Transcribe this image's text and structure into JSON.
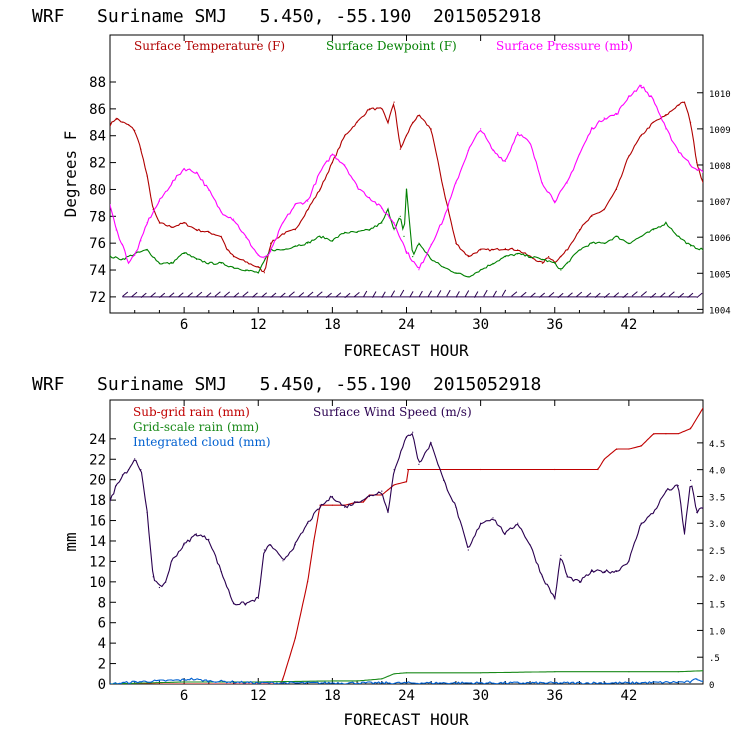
{
  "colors": {
    "temp": "#b00000",
    "dew": "#008000",
    "press": "#ff00ff",
    "rain_sub": "#c00000",
    "rain_grid": "#1a8a1a",
    "cloud": "#0060d0",
    "wind": "#2a0050",
    "axis": "#000000"
  },
  "chart_data": [
    {
      "type": "line",
      "title": "WRF   Suriname SMJ   5.450, -55.190  2015052918",
      "xlabel": "FORECAST HOUR",
      "ylabel": "Degrees F",
      "xlim": [
        0,
        48
      ],
      "ylim": [
        70.8,
        91.5
      ],
      "xticks": [
        "6",
        "12",
        "18",
        "24",
        "30",
        "36",
        "42"
      ],
      "xtick_values": [
        6,
        12,
        18,
        24,
        30,
        36,
        42
      ],
      "yticks": [
        "72",
        "74",
        "76",
        "78",
        "80",
        "82",
        "84",
        "86",
        "88"
      ],
      "ytick_values": [
        72,
        74,
        76,
        78,
        80,
        82,
        84,
        86,
        88
      ],
      "y2lim": [
        1003.9,
        1011.6
      ],
      "y2ticks": [
        "1004",
        "1005",
        "1006",
        "1007",
        "1008",
        "1009",
        "1010"
      ],
      "y2tick_values": [
        1004,
        1005,
        1006,
        1007,
        1008,
        1009,
        1010
      ],
      "legend": [
        "Surface Temperature (F)",
        "Surface Dewpoint (F)",
        "Surface Pressure (mb)"
      ],
      "series": [
        {
          "name": "Surface Temperature (F)",
          "axis": "left",
          "x": [
            0,
            0.5,
            1,
            1.5,
            2,
            2.5,
            3,
            3.5,
            4,
            5,
            6,
            7,
            8,
            9,
            9.5,
            10,
            11,
            12,
            12.5,
            13,
            14,
            15,
            16,
            17,
            18,
            19,
            20,
            21,
            22,
            22.5,
            23,
            23.5,
            24,
            24.5,
            25,
            26,
            27,
            28,
            29,
            30,
            31,
            32,
            33,
            34,
            35,
            35.5,
            36,
            36.5,
            37,
            38,
            39,
            40,
            41,
            42,
            43,
            44,
            45,
            46,
            46.5,
            47,
            47.5,
            48
          ],
          "values": [
            84.8,
            85.3,
            85.0,
            84.8,
            84.4,
            83.0,
            81.0,
            78.5,
            77.5,
            77.2,
            77.5,
            77.0,
            76.8,
            76.5,
            75.5,
            75.0,
            74.6,
            74.2,
            73.8,
            76.0,
            76.7,
            77.0,
            78.5,
            80.0,
            82.0,
            84.0,
            85.0,
            86.0,
            86.0,
            85.0,
            86.5,
            83.0,
            84.0,
            85.0,
            85.5,
            84.5,
            80.0,
            76.0,
            75.0,
            75.5,
            75.5,
            75.6,
            75.5,
            75.0,
            74.5,
            75.0,
            74.6,
            75.0,
            75.5,
            77.0,
            78.0,
            78.5,
            80.0,
            82.5,
            84.0,
            85.0,
            85.5,
            86.3,
            86.5,
            85.0,
            82.0,
            80.5
          ]
        },
        {
          "name": "Surface Dewpoint (F)",
          "axis": "left",
          "x": [
            0,
            1,
            2,
            3,
            4,
            5,
            6,
            7,
            8,
            9,
            10,
            11,
            12,
            13,
            14,
            15,
            16,
            17,
            18,
            19,
            20,
            21,
            22,
            22.5,
            23,
            23.5,
            23.8,
            24,
            24.5,
            25,
            26,
            27,
            28,
            29,
            30,
            31,
            32,
            33,
            34,
            35,
            36,
            36.5,
            37,
            38,
            39,
            40,
            41,
            42,
            43,
            44,
            45,
            46,
            47,
            48
          ],
          "values": [
            75.0,
            74.8,
            75.2,
            75.5,
            74.5,
            74.5,
            75.3,
            74.8,
            74.5,
            74.5,
            74.2,
            74.0,
            73.8,
            75.5,
            75.5,
            75.8,
            76.0,
            76.5,
            76.2,
            76.8,
            76.8,
            77.0,
            77.5,
            78.5,
            77.0,
            78.0,
            76.5,
            80.0,
            75.0,
            76.0,
            74.8,
            74.2,
            73.8,
            73.5,
            74.0,
            74.5,
            75.0,
            75.2,
            75.0,
            74.8,
            74.5,
            74.0,
            74.5,
            75.5,
            76.0,
            76.0,
            76.5,
            76.0,
            76.5,
            77.0,
            77.5,
            76.5,
            75.8,
            75.5
          ]
        },
        {
          "name": "Surface Pressure (mb)",
          "axis": "right",
          "x": [
            0,
            0.5,
            1,
            1.5,
            2,
            2.5,
            3,
            4,
            5,
            6,
            7,
            8,
            9,
            10,
            11,
            12,
            12.5,
            13,
            14,
            15,
            16,
            17,
            18,
            19,
            20,
            21,
            22,
            23,
            24,
            25,
            26,
            27,
            28,
            29,
            30,
            31,
            32,
            33,
            34,
            35,
            36,
            37,
            38,
            39,
            40,
            41,
            42,
            43,
            44,
            45,
            46,
            47,
            48
          ],
          "values": [
            1006.9,
            1006.2,
            1005.8,
            1005.3,
            1005.5,
            1005.9,
            1006.4,
            1007.0,
            1007.5,
            1007.9,
            1007.8,
            1007.3,
            1006.7,
            1006.5,
            1006.0,
            1005.5,
            1005.4,
            1005.6,
            1006.4,
            1006.9,
            1007.0,
            1007.8,
            1008.3,
            1008.0,
            1007.4,
            1007.1,
            1006.8,
            1006.4,
            1005.6,
            1005.1,
            1005.8,
            1006.5,
            1007.5,
            1008.4,
            1009.0,
            1008.4,
            1008.1,
            1008.9,
            1008.6,
            1007.5,
            1007.0,
            1007.5,
            1008.3,
            1009.0,
            1009.3,
            1009.4,
            1009.9,
            1010.2,
            1009.8,
            1009.0,
            1008.4,
            1008.0,
            1007.8
          ]
        }
      ],
      "wind_barbs": "wind barbs along 72 F"
    },
    {
      "type": "line",
      "title": "WRF   Suriname SMJ   5.450, -55.190  2015052918",
      "xlabel": "FORECAST HOUR",
      "ylabel": "mm",
      "xlim": [
        0,
        48
      ],
      "ylim": [
        0,
        27.8
      ],
      "xticks": [
        "6",
        "12",
        "18",
        "24",
        "30",
        "36",
        "42"
      ],
      "xtick_values": [
        6,
        12,
        18,
        24,
        30,
        36,
        42
      ],
      "yticks": [
        "0",
        "2",
        "4",
        "6",
        "8",
        "10",
        "12",
        "14",
        "16",
        "18",
        "20",
        "22",
        "24"
      ],
      "ytick_values": [
        0,
        2,
        4,
        6,
        8,
        10,
        12,
        14,
        16,
        18,
        20,
        22,
        24
      ],
      "y2lim": [
        0,
        5.3
      ],
      "y2ticks": [
        "0",
        ".5",
        "1.0",
        "1.5",
        "2.0",
        "2.5",
        "3.0",
        "3.5",
        "4.0",
        "4.5"
      ],
      "y2tick_values": [
        0,
        0.5,
        1.0,
        1.5,
        2.0,
        2.5,
        3.0,
        3.5,
        4.0,
        4.5
      ],
      "legend": [
        "Sub-grid rain (mm)",
        "Grid-scale rain (mm)",
        "Integrated cloud (mm)",
        "Surface Wind Speed (m/s)"
      ],
      "series": [
        {
          "name": "Sub-grid rain (mm)",
          "axis": "left",
          "x": [
            0,
            13.8,
            14,
            15,
            16,
            16.5,
            17,
            18,
            19,
            20,
            20.5,
            21,
            22,
            22.5,
            23,
            24,
            24.1,
            30,
            36,
            39.5,
            40,
            41,
            42,
            43,
            44,
            45,
            46,
            47,
            48
          ],
          "values": [
            0,
            0,
            0.5,
            4.5,
            10,
            14,
            17.5,
            17.5,
            17.5,
            17.8,
            17.8,
            18.5,
            18.5,
            19,
            19.5,
            19.8,
            21,
            21,
            21,
            21,
            22,
            23,
            23,
            23.3,
            24.5,
            24.5,
            24.5,
            25,
            27
          ]
        },
        {
          "name": "Grid-scale rain (mm)",
          "axis": "left",
          "x": [
            0,
            6,
            12,
            18,
            20,
            22,
            23,
            24,
            30,
            36,
            42,
            46,
            48
          ],
          "values": [
            0,
            0.2,
            0.2,
            0.3,
            0.3,
            0.5,
            1.0,
            1.1,
            1.1,
            1.2,
            1.2,
            1.2,
            1.3
          ]
        },
        {
          "name": "Integrated cloud (mm)",
          "axis": "left",
          "x": [
            0,
            2,
            4,
            6,
            6.5,
            8,
            12,
            18,
            24,
            30,
            36,
            42,
            47,
            47.5,
            48
          ],
          "values": [
            0,
            0.2,
            0.3,
            0.4,
            0.5,
            0.3,
            0.1,
            0.1,
            0.1,
            0.1,
            0.1,
            0.1,
            0.2,
            0.5,
            0.3
          ]
        },
        {
          "name": "Surface Wind Speed (m/s)",
          "axis": "right",
          "x": [
            0,
            0.5,
            1,
            1.5,
            2,
            2.5,
            3,
            3.5,
            4,
            4.5,
            5,
            6,
            7,
            8,
            9,
            10,
            11,
            12,
            12.5,
            13,
            14,
            15,
            16,
            17,
            18,
            19,
            20,
            21,
            22,
            22.5,
            23,
            24,
            24.5,
            25,
            26,
            27,
            28,
            29,
            30,
            31,
            32,
            33,
            34,
            35,
            36,
            36.5,
            37,
            38,
            39,
            40,
            41,
            42,
            43,
            44,
            45,
            46,
            46.5,
            47,
            47.5,
            48
          ],
          "values": [
            3.4,
            3.7,
            3.9,
            4.0,
            4.2,
            4.0,
            3.2,
            2.0,
            1.8,
            1.9,
            2.3,
            2.6,
            2.8,
            2.7,
            2.1,
            1.5,
            1.5,
            1.6,
            2.5,
            2.6,
            2.3,
            2.6,
            3.0,
            3.3,
            3.5,
            3.3,
            3.4,
            3.5,
            3.6,
            3.2,
            4.0,
            4.6,
            4.7,
            4.1,
            4.5,
            3.8,
            3.3,
            2.5,
            3.0,
            3.1,
            2.8,
            3.0,
            2.6,
            2.0,
            1.6,
            2.4,
            2.0,
            1.9,
            2.1,
            2.1,
            2.1,
            2.3,
            3.0,
            3.2,
            3.6,
            3.7,
            2.8,
            3.8,
            3.2,
            3.3
          ]
        }
      ]
    }
  ]
}
